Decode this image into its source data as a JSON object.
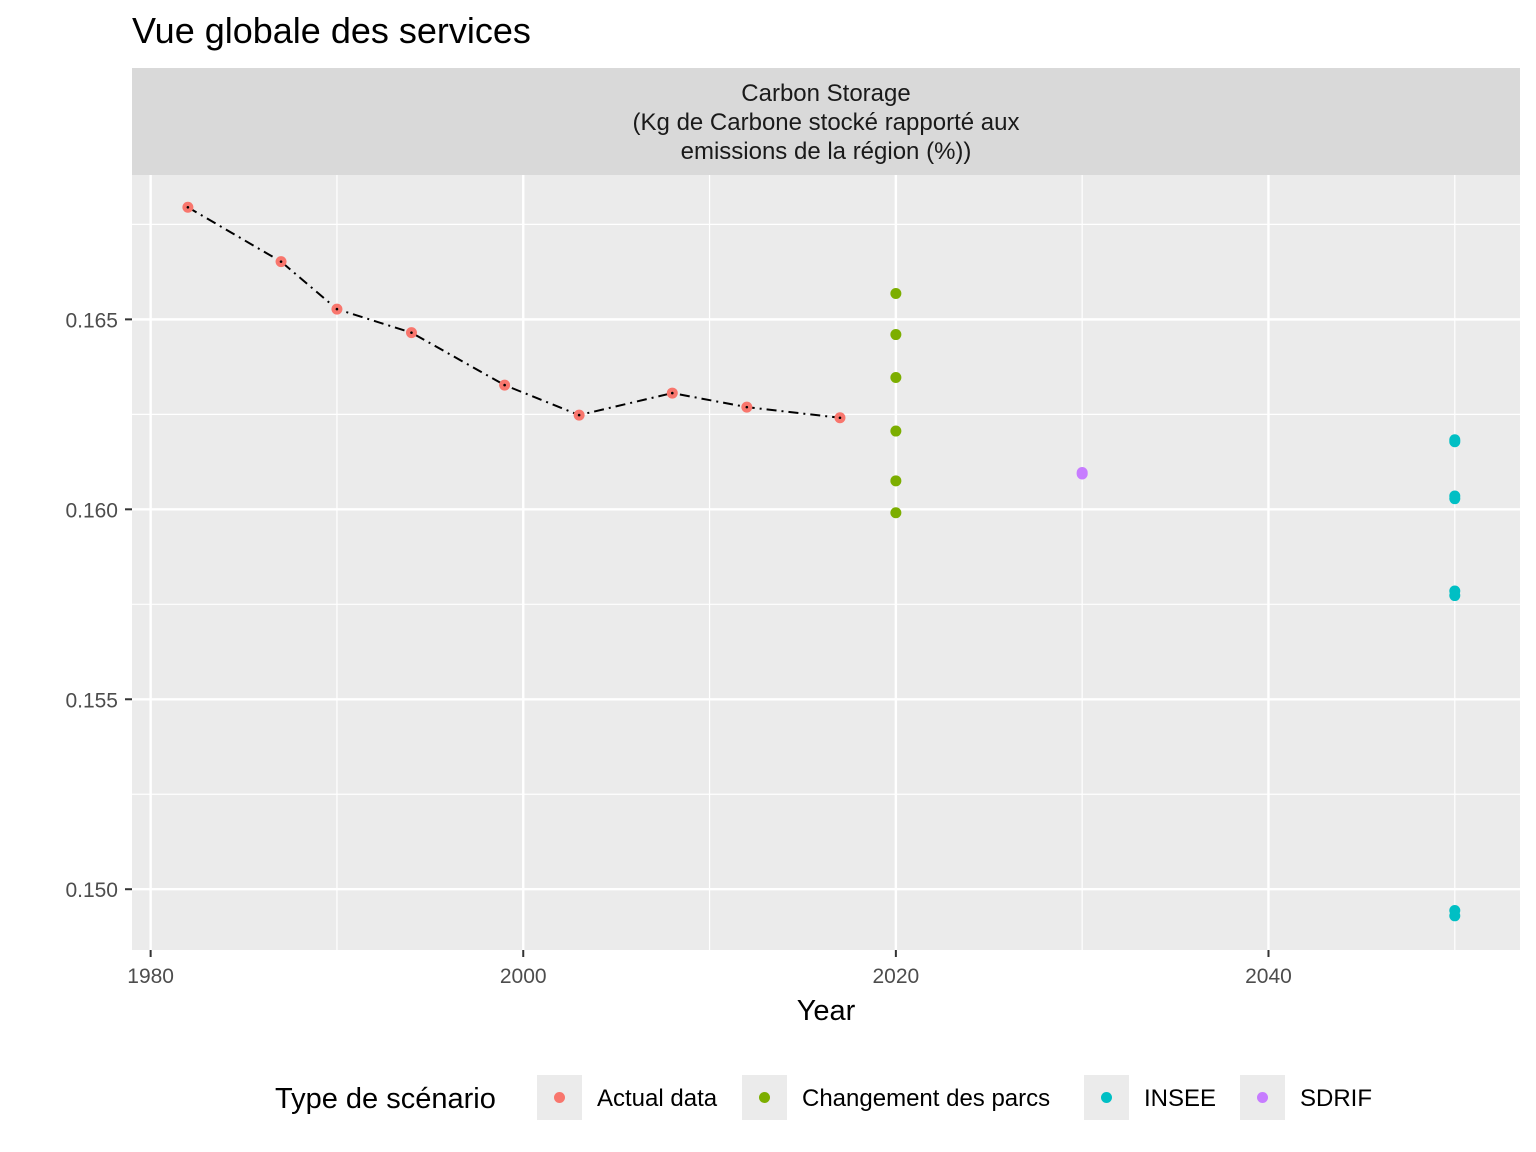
{
  "chart_data": {
    "type": "scatter",
    "title": "Vue globale des services",
    "facet_label": [
      "Carbon Storage",
      "(Kg de Carbone stocké rapporté aux",
      "emissions de la région (%))"
    ],
    "xlabel": "Year",
    "ylabel": "",
    "xlim": [
      1979,
      2053.5
    ],
    "ylim": [
      0.1484,
      0.1688
    ],
    "x_ticks": [
      1980,
      2000,
      2020,
      2040
    ],
    "x_tick_labels": [
      "1980",
      "2000",
      "2020",
      "2040"
    ],
    "y_ticks": [
      0.15,
      0.155,
      0.16,
      0.165
    ],
    "y_tick_labels": [
      "0.150",
      "0.155",
      "0.160",
      "0.165"
    ],
    "grid": true,
    "legend": {
      "title": "Type de scénario",
      "position": "bottom",
      "entries": [
        {
          "label": "Actual data",
          "color": "#F8766D"
        },
        {
          "label": "Changement des parcs",
          "color": "#7CAE00"
        },
        {
          "label": "INSEE",
          "color": "#00BFC4"
        },
        {
          "label": "SDRIF",
          "color": "#C77CFF"
        }
      ]
    },
    "series": [
      {
        "name": "Actual data",
        "color": "#F8766D",
        "connected": true,
        "line_style": "dashdot",
        "line_color": "#000000",
        "points": [
          {
            "x": 1982,
            "y": 0.16795
          },
          {
            "x": 1987,
            "y": 0.16652
          },
          {
            "x": 1990,
            "y": 0.16527
          },
          {
            "x": 1994,
            "y": 0.16465
          },
          {
            "x": 1999,
            "y": 0.16327
          },
          {
            "x": 2003,
            "y": 0.16248
          },
          {
            "x": 2008,
            "y": 0.16306
          },
          {
            "x": 2012,
            "y": 0.16269
          },
          {
            "x": 2017,
            "y": 0.16241
          }
        ]
      },
      {
        "name": "Changement des parcs",
        "color": "#7CAE00",
        "points": [
          {
            "x": 2020,
            "y": 0.16568
          },
          {
            "x": 2020,
            "y": 0.1646
          },
          {
            "x": 2020,
            "y": 0.16347
          },
          {
            "x": 2020,
            "y": 0.16206
          },
          {
            "x": 2020,
            "y": 0.16075
          },
          {
            "x": 2020,
            "y": 0.15991
          }
        ]
      },
      {
        "name": "INSEE",
        "color": "#00BFC4",
        "points": [
          {
            "x": 2050,
            "y": 0.16183
          },
          {
            "x": 2050,
            "y": 0.16178
          },
          {
            "x": 2050,
            "y": 0.16035
          },
          {
            "x": 2050,
            "y": 0.16028
          },
          {
            "x": 2050,
            "y": 0.15785
          },
          {
            "x": 2050,
            "y": 0.15773
          },
          {
            "x": 2050,
            "y": 0.14944
          },
          {
            "x": 2050,
            "y": 0.1493
          }
        ]
      },
      {
        "name": "SDRIF",
        "color": "#C77CFF",
        "points": [
          {
            "x": 2030,
            "y": 0.16097
          },
          {
            "x": 2030,
            "y": 0.16093
          }
        ]
      }
    ]
  }
}
